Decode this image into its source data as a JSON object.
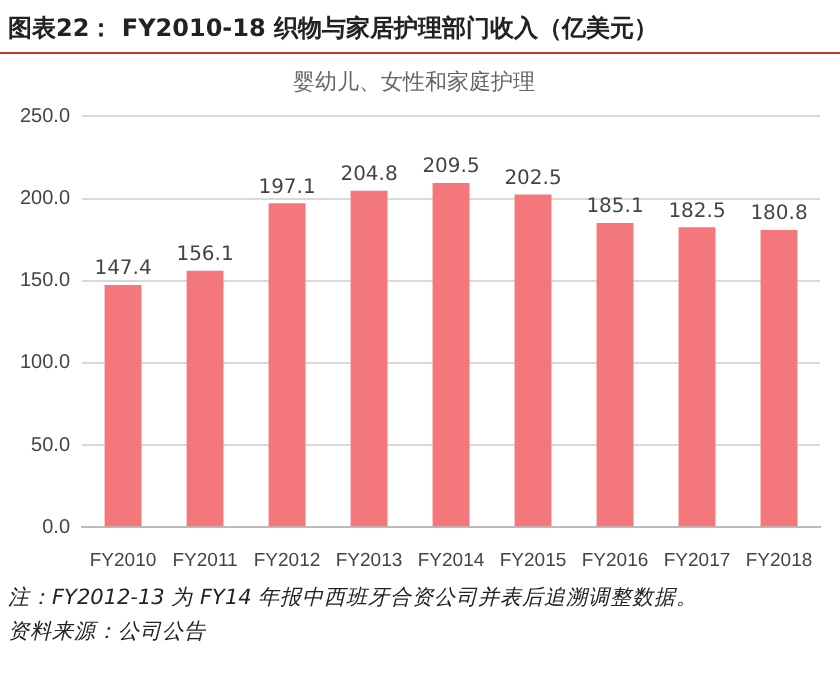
{
  "chart_data": {
    "type": "bar",
    "title": "图表22： FY2010-18 织物与家居护理部门收入（亿美元）",
    "subtitle": "婴幼儿、女性和家庭护理",
    "categories": [
      "FY2010",
      "FY2011",
      "FY2012",
      "FY2013",
      "FY2014",
      "FY2015",
      "FY2016",
      "FY2017",
      "FY2018"
    ],
    "values": [
      147.4,
      156.1,
      197.1,
      204.8,
      209.5,
      202.5,
      185.1,
      182.5,
      180.8
    ],
    "color": "#f4777b",
    "ylim": [
      0,
      250
    ],
    "yticks": [
      {
        "value": 0,
        "label": "0.0"
      },
      {
        "value": 50,
        "label": "50.0"
      },
      {
        "value": 100,
        "label": "100.0"
      },
      {
        "value": 150,
        "label": "150.0"
      },
      {
        "value": 200,
        "label": "200.0"
      },
      {
        "value": 250,
        "label": "250.0"
      }
    ],
    "grid": "y",
    "legend": false,
    "data_labels": true,
    "annotations": [
      "注：FY2012-13 为 FY14 年报中西班牙合资公司并表后追溯调整数据。",
      "资料来源：公司公告"
    ]
  }
}
